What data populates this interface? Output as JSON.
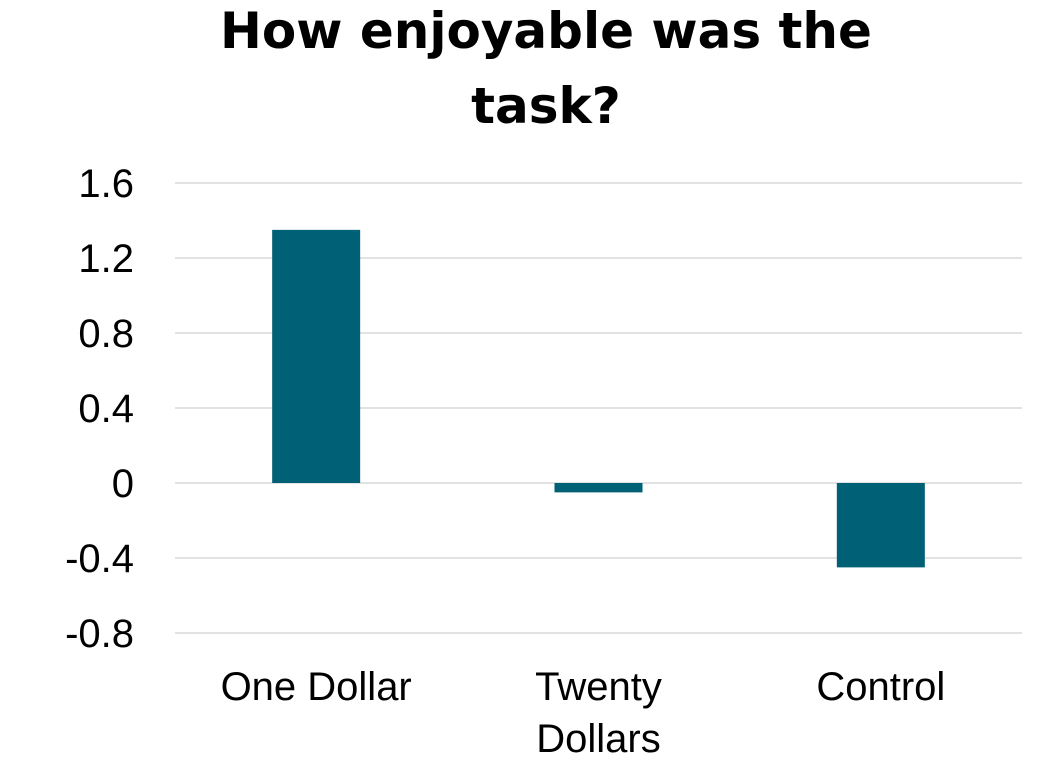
{
  "chart_data": {
    "type": "bar",
    "title": "How enjoyable was the task?",
    "title_lines": [
      "How enjoyable was the",
      "task?"
    ],
    "categories": [
      "One Dollar",
      "Twenty Dollars",
      "Control"
    ],
    "category_lines": [
      [
        "One Dollar"
      ],
      [
        "Twenty",
        "Dollars"
      ],
      [
        "Control"
      ]
    ],
    "values": [
      1.35,
      -0.05,
      -0.45
    ],
    "xlabel": "",
    "ylabel": "",
    "ylim": [
      -0.8,
      1.6
    ],
    "yticks": [
      1.6,
      1.2,
      0.8,
      0.4,
      0,
      -0.4,
      -0.8
    ],
    "ytick_labels": [
      "1.6",
      "1.2",
      "0.8",
      "0.4",
      "0",
      "-0.4",
      "-0.8"
    ],
    "grid": true,
    "legend": "none",
    "bar_color": "#006076"
  }
}
